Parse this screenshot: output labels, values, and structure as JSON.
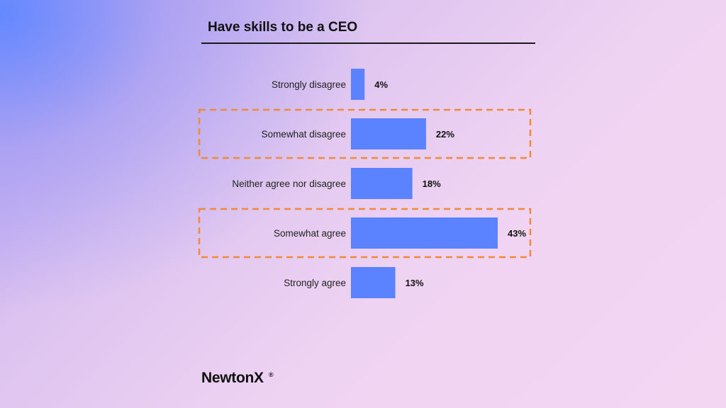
{
  "colors": {
    "bar": "#5b82ff",
    "highlight": "#f08a3a",
    "text": "#111111"
  },
  "chart_data": {
    "type": "bar",
    "orientation": "horizontal",
    "title": "Have skills to be a CEO",
    "categories": [
      "Strongly disagree",
      "Somewhat disagree",
      "Neither agree nor disagree",
      "Somewhat agree",
      "Strongly agree"
    ],
    "values": [
      4,
      22,
      18,
      43,
      13
    ],
    "value_labels": [
      "4%",
      "22%",
      "18%",
      "43%",
      "13%"
    ],
    "unit": "%",
    "highlighted_categories": [
      "Somewhat disagree",
      "Somewhat agree"
    ],
    "xlim": [
      0,
      43
    ],
    "grid": false,
    "legend": "none"
  },
  "brand": {
    "name": "NewtonX",
    "registered": "®"
  }
}
